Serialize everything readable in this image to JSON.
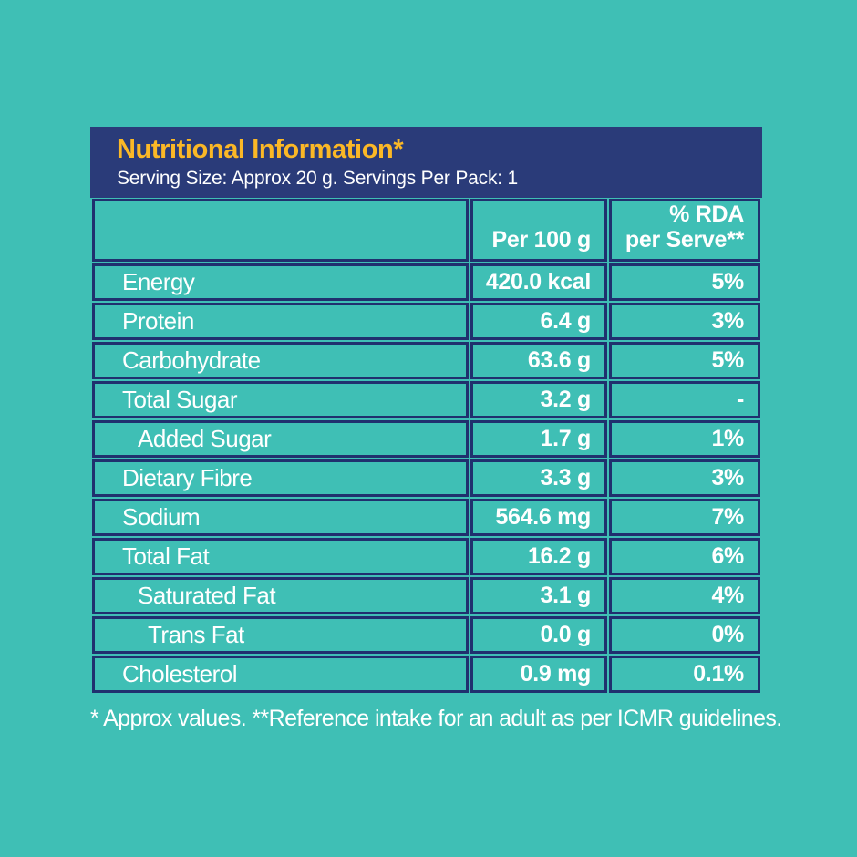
{
  "colors": {
    "background_teal": "#3FBFB5",
    "band_navy": "#2A3B79",
    "border_navy": "#20306E",
    "title_yellow": "#FBB826",
    "text_white": "#FFFFFF"
  },
  "header": {
    "title": "Nutritional Information*",
    "subtitle": "Serving Size: Approx 20 g. Servings Per Pack: 1"
  },
  "table": {
    "columns": {
      "nutrient": "",
      "per_100g": "Per 100 g",
      "rda_line1": "% RDA",
      "rda_line2": "per Serve**"
    },
    "rows": [
      {
        "label": "Energy",
        "indent": 0,
        "per_100g": "420.0 kcal",
        "rda": "5%"
      },
      {
        "label": "Protein",
        "indent": 0,
        "per_100g": "6.4 g",
        "rda": "3%"
      },
      {
        "label": "Carbohydrate",
        "indent": 0,
        "per_100g": "63.6 g",
        "rda": "5%"
      },
      {
        "label": "Total Sugar",
        "indent": 0,
        "per_100g": "3.2 g",
        "rda": "-"
      },
      {
        "label": "Added Sugar",
        "indent": 1,
        "per_100g": "1.7 g",
        "rda": "1%"
      },
      {
        "label": "Dietary Fibre",
        "indent": 0,
        "per_100g": "3.3 g",
        "rda": "3%"
      },
      {
        "label": "Sodium",
        "indent": 0,
        "per_100g": "564.6 mg",
        "rda": "7%"
      },
      {
        "label": "Total Fat",
        "indent": 0,
        "per_100g": "16.2 g",
        "rda": "6%"
      },
      {
        "label": "Saturated Fat",
        "indent": 1,
        "per_100g": "3.1 g",
        "rda": "4%"
      },
      {
        "label": "Trans Fat",
        "indent": 2,
        "per_100g": "0.0 g",
        "rda": "0%"
      },
      {
        "label": "Cholesterol",
        "indent": 0,
        "per_100g": "0.9 mg",
        "rda": "0.1%"
      }
    ]
  },
  "footnote": "* Approx values. **Reference intake for an adult as per ICMR guidelines."
}
